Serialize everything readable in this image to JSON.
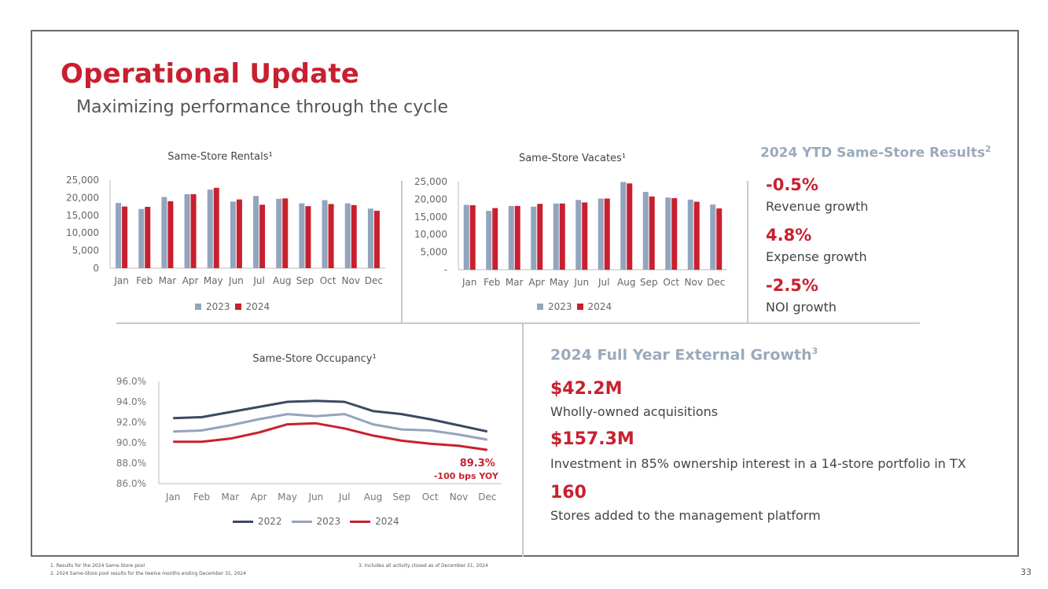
{
  "header": {
    "title": "Operational Update",
    "subtitle": "Maximizing performance through the cycle"
  },
  "colors": {
    "accent": "#c8202f",
    "series_2023": "#93a4bd",
    "series_2022": "#3b4a63",
    "muted_heading": "#9aaabb"
  },
  "chart_data": [
    {
      "type": "bar",
      "title": "Same-Store Rentals¹",
      "categories": [
        "Jan",
        "Feb",
        "Mar",
        "Apr",
        "May",
        "Jun",
        "Jul",
        "Aug",
        "Sep",
        "Oct",
        "Nov",
        "Dec"
      ],
      "series": [
        {
          "name": "2023",
          "values": [
            18500,
            16800,
            20200,
            21000,
            22300,
            18900,
            20500,
            19700,
            18400,
            19300,
            18400,
            16900
          ]
        },
        {
          "name": "2024",
          "values": [
            17500,
            17400,
            19000,
            21000,
            22800,
            19500,
            18000,
            19800,
            17600,
            18200,
            17900,
            16300
          ]
        }
      ],
      "y_ticks": [
        "0",
        "5,000",
        "10,000",
        "15,000",
        "20,000",
        "25,000"
      ],
      "ylim": [
        0,
        25000
      ]
    },
    {
      "type": "bar",
      "title": "Same-Store Vacates¹",
      "categories": [
        "Jan",
        "Feb",
        "Mar",
        "Apr",
        "May",
        "Jun",
        "Jul",
        "Aug",
        "Sep",
        "Oct",
        "Nov",
        "Dec"
      ],
      "series": [
        {
          "name": "2023",
          "values": [
            18400,
            16700,
            18100,
            17900,
            18800,
            19800,
            20200,
            24900,
            22100,
            20500,
            19900,
            18500
          ]
        },
        {
          "name": "2024",
          "values": [
            18300,
            17500,
            18100,
            18700,
            18800,
            19100,
            20200,
            24500,
            20800,
            20300,
            19300,
            17400
          ]
        }
      ],
      "y_ticks": [
        "-",
        "5,000",
        "10,000",
        "15,000",
        "20,000",
        "25,000"
      ],
      "ylim": [
        0,
        25000
      ]
    },
    {
      "type": "line",
      "title": "Same-Store Occupancy¹",
      "categories": [
        "Jan",
        "Feb",
        "Mar",
        "Apr",
        "May",
        "Jun",
        "Jul",
        "Aug",
        "Sep",
        "Oct",
        "Nov",
        "Dec"
      ],
      "series": [
        {
          "name": "2022",
          "values": [
            92.4,
            92.5,
            93.0,
            93.5,
            94.0,
            94.1,
            94.0,
            93.1,
            92.8,
            92.3,
            91.7,
            91.1
          ]
        },
        {
          "name": "2023",
          "values": [
            91.1,
            91.2,
            91.7,
            92.3,
            92.8,
            92.6,
            92.8,
            91.8,
            91.3,
            91.2,
            90.8,
            90.3
          ]
        },
        {
          "name": "2024",
          "values": [
            90.1,
            90.1,
            90.4,
            91.0,
            91.8,
            91.9,
            91.4,
            90.7,
            90.2,
            89.9,
            89.7,
            89.3
          ]
        }
      ],
      "y_ticks": [
        "86.0%",
        "88.0%",
        "90.0%",
        "92.0%",
        "94.0%",
        "96.0%"
      ],
      "ylim": [
        86,
        96
      ],
      "annotations": {
        "value": "89.3%",
        "note": "-100 bps YOY"
      }
    }
  ],
  "ytd": {
    "header": "2024 YTD Same-Store Results",
    "header_sup": "2",
    "metrics": [
      {
        "value": "-0.5%",
        "label": "Revenue growth"
      },
      {
        "value": "4.8%",
        "label": "Expense growth"
      },
      {
        "value": "-2.5%",
        "label": "NOI growth"
      }
    ]
  },
  "external": {
    "header": "2024 Full Year External Growth",
    "header_sup": "3",
    "items": [
      {
        "value": "$42.2M",
        "label": "Wholly-owned acquisitions"
      },
      {
        "value": "$157.3M",
        "label": "Investment in 85% ownership interest in a 14-store portfolio in TX"
      },
      {
        "value": "160",
        "label": "Stores added to the management platform"
      }
    ]
  },
  "footnotes": [
    "1.    Results for the 2024 Same-Store pool",
    "2.    2024 Same-Store pool results for the twelve months ending December 31, 2024",
    "3.    Includes all activity closed as of December 31, 2024"
  ],
  "page_number": "33"
}
